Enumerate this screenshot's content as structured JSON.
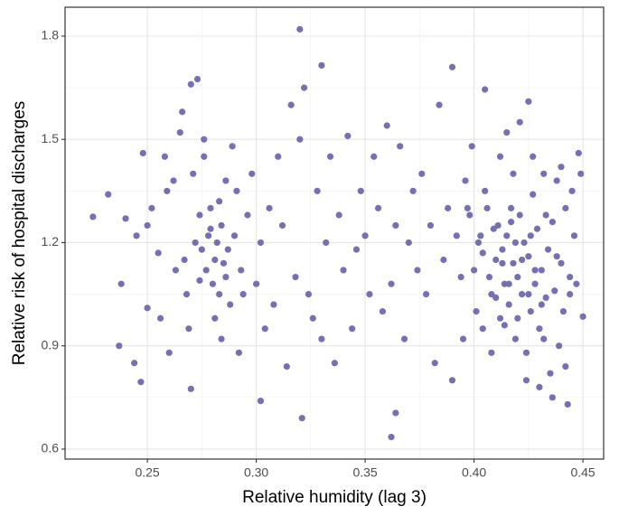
{
  "chart_data": {
    "type": "scatter",
    "x_label": "Relative humidity (lag 3)",
    "y_label": "Relative risk of hospital discharges",
    "color": "#7570b3",
    "xlim": [
      0.2122,
      0.4595
    ],
    "ylim": [
      0.571,
      1.884
    ],
    "xticks": [
      {
        "value": 0.25,
        "label": "0.25"
      },
      {
        "value": 0.3,
        "label": "0.30"
      },
      {
        "value": 0.35,
        "label": "0.35"
      },
      {
        "value": 0.4,
        "label": "0.40"
      },
      {
        "value": 0.45,
        "label": "0.45"
      }
    ],
    "yticks": [
      0.6,
      0.9,
      1.2,
      1.5,
      1.8
    ],
    "grid": true,
    "x": [
      0.225,
      0.232,
      0.237,
      0.238,
      0.247,
      0.27,
      0.27,
      0.273,
      0.32,
      0.33,
      0.39,
      0.405,
      0.362,
      0.364,
      0.321,
      0.302,
      0.45,
      0.448,
      0.443,
      0.425,
      0.24,
      0.245,
      0.248,
      0.25,
      0.252,
      0.255,
      0.258,
      0.26,
      0.262,
      0.265,
      0.244,
      0.25,
      0.256,
      0.259,
      0.263,
      0.266,
      0.268,
      0.271,
      0.274,
      0.276,
      0.275,
      0.277,
      0.278,
      0.28,
      0.281,
      0.282,
      0.283,
      0.284,
      0.285,
      0.286,
      0.272,
      0.274,
      0.279,
      0.281,
      0.283,
      0.287,
      0.288,
      0.29,
      0.291,
      0.293,
      0.267,
      0.269,
      0.276,
      0.279,
      0.284,
      0.286,
      0.289,
      0.292,
      0.294,
      0.296,
      0.298,
      0.3,
      0.302,
      0.304,
      0.306,
      0.308,
      0.31,
      0.312,
      0.314,
      0.316,
      0.318,
      0.32,
      0.322,
      0.324,
      0.326,
      0.328,
      0.33,
      0.332,
      0.334,
      0.336,
      0.338,
      0.34,
      0.342,
      0.344,
      0.346,
      0.348,
      0.35,
      0.352,
      0.354,
      0.356,
      0.358,
      0.36,
      0.362,
      0.364,
      0.366,
      0.368,
      0.37,
      0.372,
      0.374,
      0.376,
      0.378,
      0.38,
      0.382,
      0.384,
      0.386,
      0.388,
      0.39,
      0.392,
      0.394,
      0.396,
      0.4,
      0.402,
      0.404,
      0.406,
      0.408,
      0.41,
      0.411,
      0.412,
      0.413,
      0.414,
      0.415,
      0.416,
      0.417,
      0.418,
      0.419,
      0.42,
      0.421,
      0.422,
      0.423,
      0.424,
      0.425,
      0.426,
      0.427,
      0.428,
      0.429,
      0.43,
      0.431,
      0.432,
      0.433,
      0.434,
      0.435,
      0.436,
      0.437,
      0.438,
      0.439,
      0.44,
      0.441,
      0.442,
      0.444,
      0.446,
      0.405,
      0.408,
      0.412,
      0.415,
      0.418,
      0.421,
      0.424,
      0.427,
      0.43,
      0.433,
      0.403,
      0.407,
      0.41,
      0.413,
      0.416,
      0.419,
      0.422,
      0.425,
      0.428,
      0.431,
      0.398,
      0.401,
      0.404,
      0.409,
      0.414,
      0.417,
      0.42,
      0.426,
      0.432,
      0.438,
      0.395,
      0.397,
      0.399,
      0.436,
      0.44,
      0.442,
      0.445,
      0.447,
      0.449,
      0.444
    ],
    "values": [
      1.275,
      1.34,
      0.9,
      1.08,
      0.795,
      0.775,
      1.66,
      1.675,
      1.82,
      1.715,
      1.71,
      1.645,
      0.635,
      0.705,
      0.69,
      0.74,
      0.985,
      1.46,
      0.73,
      1.61,
      1.27,
      1.22,
      1.46,
      1.01,
      1.3,
      1.17,
      1.45,
      0.88,
      1.38,
      1.52,
      0.85,
      1.25,
      0.98,
      1.35,
      1.12,
      1.58,
      1.05,
      1.4,
      1.28,
      1.5,
      1.18,
      1.12,
      1.22,
      1.08,
      1.15,
      1.2,
      1.05,
      1.25,
      1.14,
      1.1,
      1.2,
      1.09,
      1.3,
      0.98,
      1.32,
      1.18,
      1.02,
      1.22,
      1.35,
      1.12,
      1.15,
      0.95,
      1.45,
      1.24,
      0.92,
      1.38,
      1.48,
      0.88,
      1.05,
      1.28,
      1.4,
      1.08,
      1.2,
      0.95,
      1.3,
      1.02,
      1.45,
      1.25,
      0.84,
      1.6,
      1.1,
      1.5,
      1.65,
      1.05,
      0.98,
      1.35,
      0.92,
      1.2,
      1.45,
      0.85,
      1.28,
      1.12,
      1.51,
      0.95,
      1.18,
      1.35,
      1.22,
      1.05,
      1.45,
      1.3,
      1.0,
      1.54,
      1.08,
      1.25,
      1.48,
      0.92,
      1.2,
      1.35,
      1.12,
      1.4,
      1.05,
      1.25,
      0.85,
      1.6,
      1.15,
      1.3,
      0.8,
      1.22,
      1.1,
      1.38,
      1.12,
      1.2,
      0.95,
      1.3,
      1.05,
      1.15,
      1.25,
      0.98,
      1.18,
      1.08,
      1.22,
      1.02,
      1.3,
      1.14,
      0.92,
      1.1,
      1.28,
      1.05,
      1.2,
      0.88,
      1.16,
      1.0,
      1.34,
      1.08,
      1.24,
      0.95,
      1.12,
      1.4,
      1.04,
      1.18,
      0.82,
      1.26,
      1.06,
      1.38,
      0.9,
      1.14,
      1.0,
      1.3,
      1.1,
      1.22,
      1.35,
      0.88,
      1.45,
      1.52,
      1.4,
      1.55,
      0.8,
      1.45,
      0.78,
      1.28,
      1.22,
      1.1,
      1.04,
      1.14,
      1.08,
      1.2,
      1.15,
      1.05,
      1.12,
      1.02,
      1.28,
      1.0,
      1.17,
      1.24,
      0.96,
      1.26,
      0.98,
      1.22,
      0.92,
      1.16,
      0.92,
      1.3,
      1.48,
      0.75,
      1.42,
      0.84,
      1.35,
      1.08,
      1.4,
      1.05
    ]
  }
}
